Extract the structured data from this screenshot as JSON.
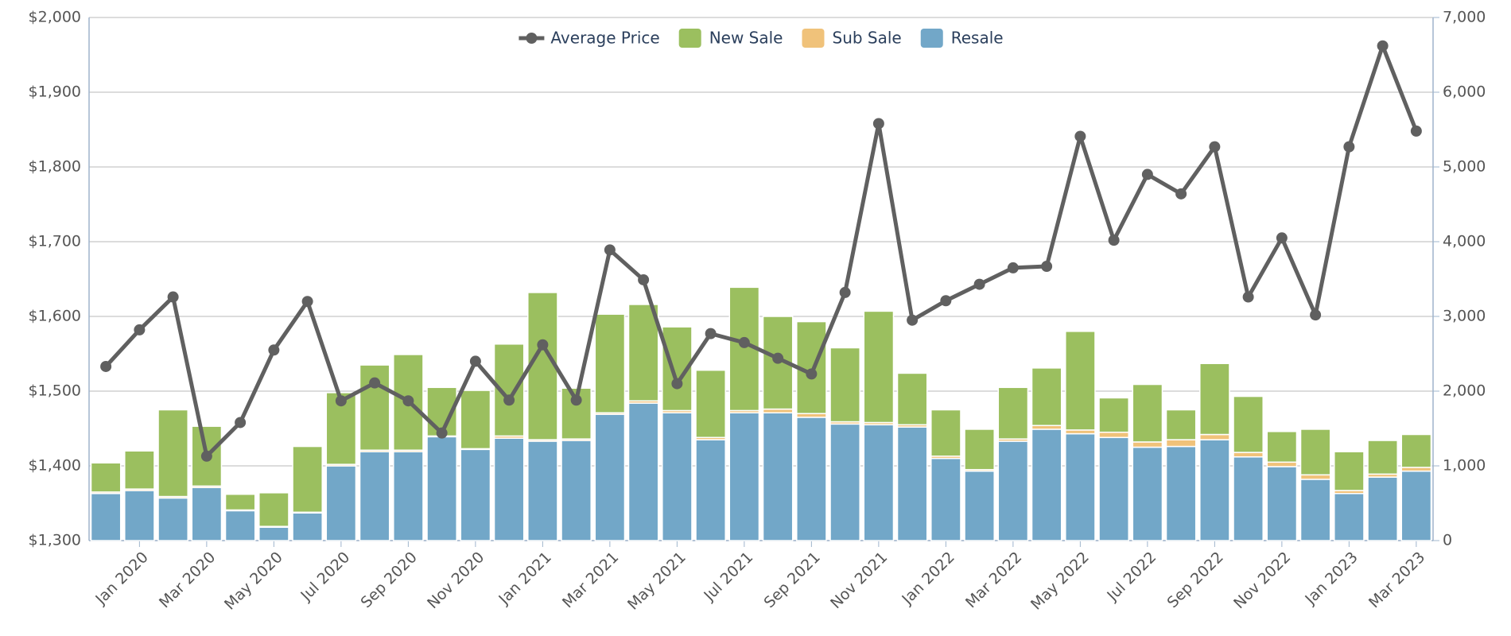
{
  "chart_data": {
    "type": "bar_line",
    "categories": [
      null,
      "Jan 2020",
      null,
      "Mar 2020",
      null,
      "May 2020",
      null,
      "Jul 2020",
      null,
      "Sep 2020",
      null,
      "Nov 2020",
      null,
      "Jan 2021",
      null,
      "Mar 2021",
      null,
      "May 2021",
      null,
      "Jul 2021",
      null,
      "Sep 2021",
      null,
      "Nov 2021",
      null,
      "Jan 2022",
      null,
      "Mar 2022",
      null,
      "May 2022",
      null,
      "Jul 2022",
      null,
      "Sep 2022",
      null,
      "Nov 2022",
      null,
      "Jan 2023",
      null,
      "Mar 2023"
    ],
    "series": [
      {
        "name": "Average Price",
        "type": "line",
        "axis": "y",
        "color": "#606060",
        "values": [
          1533,
          1582,
          1626,
          1413,
          1458,
          1555,
          1620,
          1487,
          1511,
          1487,
          1444,
          1540,
          1488,
          1562,
          1488,
          1689,
          1649,
          1510,
          1577,
          1565,
          1544,
          1523,
          1632,
          1858,
          1595,
          1621,
          1643,
          1665,
          1667,
          1841,
          1702,
          1790,
          1764,
          1827,
          1626,
          1705,
          1602,
          1827,
          1962,
          1848
        ]
      },
      {
        "name": "New Sale",
        "type": "bar",
        "axis": "y2",
        "color": "#9bbf5f",
        "values": [
          390,
          510,
          1160,
          800,
          210,
          450,
          880,
          960,
          1140,
          1280,
          650,
          780,
          1230,
          1970,
          680,
          1320,
          1290,
          1120,
          900,
          1650,
          1240,
          1230,
          990,
          1490,
          690,
          620,
          540,
          690,
          770,
          1320,
          460,
          770,
          400,
          950,
          750,
          410,
          610,
          520,
          450,
          440
        ]
      },
      {
        "name": "Sub Sale",
        "type": "bar",
        "axis": "y2",
        "color": "#f0c27a",
        "values": [
          20,
          20,
          20,
          20,
          10,
          10,
          10,
          20,
          20,
          20,
          10,
          10,
          30,
          20,
          20,
          20,
          30,
          30,
          30,
          30,
          50,
          50,
          30,
          30,
          30,
          30,
          20,
          30,
          50,
          50,
          70,
          70,
          90,
          70,
          60,
          60,
          60,
          40,
          40,
          50
        ]
      },
      {
        "name": "Resale",
        "type": "bar",
        "axis": "y2",
        "color": "#72a7c8",
        "values": [
          630,
          670,
          570,
          710,
          400,
          180,
          370,
          1000,
          1190,
          1190,
          1390,
          1220,
          1370,
          1330,
          1340,
          1690,
          1840,
          1710,
          1350,
          1710,
          1710,
          1650,
          1560,
          1550,
          1520,
          1100,
          930,
          1330,
          1490,
          1430,
          1380,
          1250,
          1260,
          1350,
          1120,
          990,
          820,
          630,
          850,
          930
        ]
      }
    ],
    "stack_order": [
      "Resale",
      "Sub Sale",
      "New Sale"
    ],
    "ylim": [
      1300,
      2000
    ],
    "yticks": [
      {
        "value": 1300,
        "label": "$1,300"
      },
      {
        "value": 1400,
        "label": "$1,400"
      },
      {
        "value": 1500,
        "label": "$1,500"
      },
      {
        "value": 1600,
        "label": "$1,600"
      },
      {
        "value": 1700,
        "label": "$1,700"
      },
      {
        "value": 1800,
        "label": "$1,800"
      },
      {
        "value": 1900,
        "label": "$1,900"
      },
      {
        "value": 2000,
        "label": "$2,000"
      }
    ],
    "y2lim": [
      0,
      7000
    ],
    "y2ticks": [
      0,
      {
        "value": 1000,
        "label": "1,000"
      },
      {
        "value": 2000,
        "label": "2,000"
      },
      {
        "value": 3000,
        "label": "3,000"
      },
      {
        "value": 4000,
        "label": "4,000"
      },
      {
        "value": 5000,
        "label": "5,000"
      },
      {
        "value": 6000,
        "label": "6,000"
      },
      {
        "value": 7000,
        "label": "7,000"
      }
    ],
    "grid": true,
    "legend": "top"
  }
}
